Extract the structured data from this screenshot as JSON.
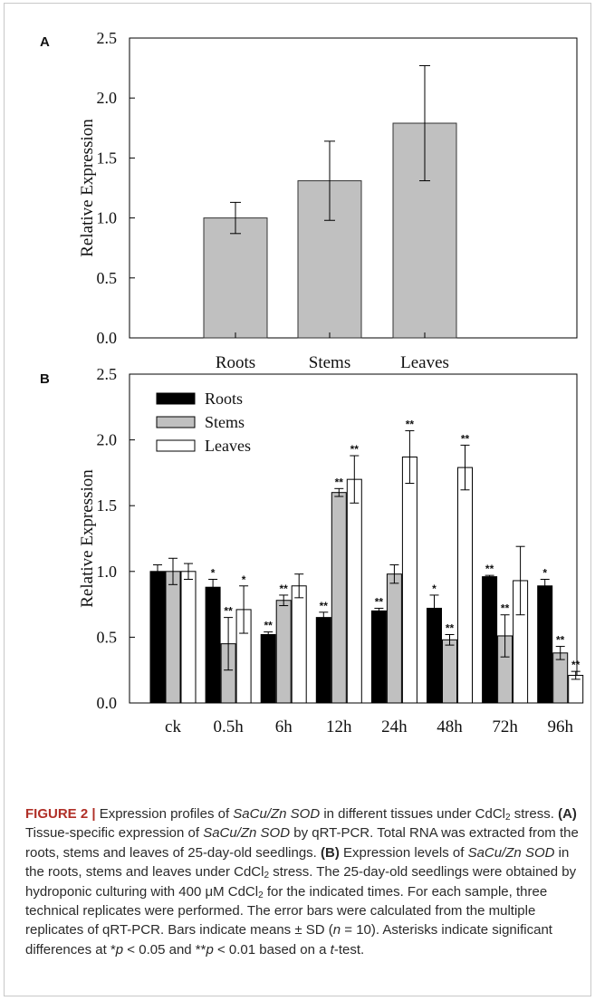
{
  "chart_data": [
    {
      "panel": "A",
      "type": "bar",
      "ylabel": "Relative Expression",
      "ylim": [
        0,
        2.5
      ],
      "yticks": [
        "0.0",
        "0.5",
        "1.0",
        "1.5",
        "2.0",
        "2.5"
      ],
      "categories": [
        "Roots",
        "Stems",
        "Leaves"
      ],
      "values": [
        1.0,
        1.31,
        1.79
      ],
      "errors": [
        0.13,
        0.33,
        0.48
      ],
      "colors": {
        "bar": "#c0c0c0"
      }
    },
    {
      "panel": "B",
      "type": "bar",
      "ylabel": "Relative Expression",
      "ylim": [
        0,
        2.5
      ],
      "yticks": [
        "0.0",
        "0.5",
        "1.0",
        "1.5",
        "2.0",
        "2.5"
      ],
      "categories": [
        "ck",
        "0.5h",
        "6h",
        "12h",
        "24h",
        "48h",
        "72h",
        "96h"
      ],
      "legend_position": "top-left",
      "series": [
        {
          "name": "Roots",
          "color": "#000000",
          "values": [
            1.0,
            0.88,
            0.52,
            0.65,
            0.7,
            0.72,
            0.96,
            0.89
          ],
          "errors": [
            0.05,
            0.06,
            0.02,
            0.04,
            0.02,
            0.1,
            0.01,
            0.05
          ],
          "marks": [
            "",
            "*",
            "**",
            "**",
            "**",
            "*",
            "**",
            "*"
          ]
        },
        {
          "name": "Stems",
          "color": "#c0c0c0",
          "values": [
            1.0,
            0.45,
            0.78,
            1.6,
            0.98,
            0.48,
            0.51,
            0.38
          ],
          "errors": [
            0.1,
            0.2,
            0.04,
            0.03,
            0.07,
            0.04,
            0.16,
            0.05
          ],
          "marks": [
            "",
            "**",
            "**",
            "**",
            "",
            "**",
            "**",
            "**"
          ]
        },
        {
          "name": "Leaves",
          "color": "#ffffff",
          "values": [
            1.0,
            0.71,
            0.89,
            1.7,
            1.87,
            1.79,
            0.93,
            0.21
          ],
          "errors": [
            0.06,
            0.18,
            0.09,
            0.18,
            0.2,
            0.17,
            0.26,
            0.03
          ],
          "marks": [
            "",
            "*",
            "",
            "**",
            "**",
            "**",
            "",
            "**"
          ]
        }
      ]
    }
  ],
  "caption": {
    "figure_label": "FIGURE 2 |",
    "segments": [
      {
        "t": " Expression profiles of "
      },
      {
        "t": "SaCu/Zn SOD",
        "i": true
      },
      {
        "t": " in different tissues under CdCl"
      },
      {
        "t": "2",
        "sub": true
      },
      {
        "t": " stress. "
      },
      {
        "t": "(A)",
        "b": true
      },
      {
        "t": " Tissue-specific expression of "
      },
      {
        "t": "SaCu/Zn SOD",
        "i": true
      },
      {
        "t": " by qRT-PCR. Total RNA was extracted from the roots, stems and leaves of 25-day-old seedlings. "
      },
      {
        "t": "(B)",
        "b": true
      },
      {
        "t": " Expression levels of "
      },
      {
        "t": "SaCu/Zn SOD",
        "i": true
      },
      {
        "t": " in the roots, stems and leaves under CdCl"
      },
      {
        "t": "2",
        "sub": true
      },
      {
        "t": " stress. The 25-day-old seedlings were obtained by hydroponic culturing with 400 μM CdCl"
      },
      {
        "t": "2",
        "sub": true
      },
      {
        "t": " for the indicated times. For each sample, three technical replicates were performed. The error bars were calculated from the multiple replicates of qRT-PCR. Bars indicate means ± SD ("
      },
      {
        "t": "n",
        "i": true
      },
      {
        "t": " = 10). Asterisks indicate significant differences at *"
      },
      {
        "t": "p",
        "i": true
      },
      {
        "t": " < 0.05 and **"
      },
      {
        "t": "p",
        "i": true
      },
      {
        "t": " < 0.01 based on a "
      },
      {
        "t": "t",
        "i": true
      },
      {
        "t": "-test."
      }
    ]
  }
}
